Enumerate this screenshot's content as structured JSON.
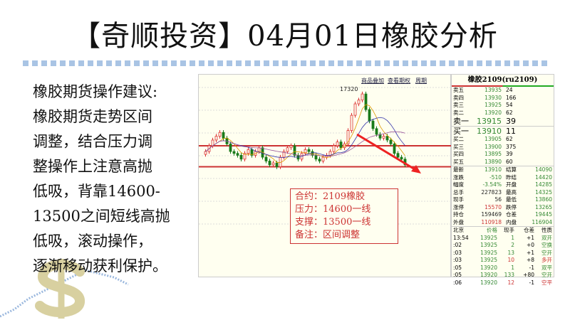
{
  "title": "【奇顺投资】04月01日橡胶分析",
  "advice": [
    "橡胶期货操作建议:",
    "橡胶期货走势区间",
    "调整，结合压力调",
    "整操作上注意高抛",
    "低吸，背靠14600-",
    "13500之间短线高抛",
    "低吸，滚动操作，",
    "逐渐移动获利保护。"
  ],
  "chart": {
    "toolbar": [
      "商品叠加",
      "查看期权",
      "周期"
    ],
    "high_label": "17320",
    "resistance": 14600,
    "support": 13500,
    "note": [
      "合约：2109橡胶",
      "压力：14600一线",
      "支撑：13500一线",
      "备注：区间调整"
    ],
    "colors": {
      "up": "#d33",
      "down": "#1a7a1a",
      "line": "#c33"
    }
  },
  "chart_data": {
    "type": "candlestick",
    "closes": [
      14300,
      14600,
      14900,
      15100,
      15300,
      15000,
      14700,
      14300,
      14200,
      14100,
      13900,
      14200,
      14400,
      14100,
      14300,
      14500,
      14000,
      13800,
      13600,
      13700,
      13500,
      14000,
      14300,
      14500,
      14600,
      14100,
      13900,
      14200,
      14400,
      14300,
      14100,
      13900,
      13800,
      14000,
      14100,
      14300,
      14600,
      14800,
      14500,
      14700,
      15400,
      16200,
      16800,
      17000,
      17320,
      16500,
      15900,
      15500,
      15200,
      15000,
      15100,
      14900,
      14700,
      14200,
      14000,
      13900,
      13600
    ],
    "hlines": [
      14600,
      13500
    ]
  },
  "quote": {
    "title": "橡胶2109(ru2109)",
    "sells": [
      [
        "卖五",
        "13935",
        "24"
      ],
      [
        "卖四",
        "13930",
        "166"
      ],
      [
        "卖三",
        "13925",
        "54"
      ],
      [
        "卖二",
        "13920",
        "62"
      ],
      [
        "卖一",
        "13915",
        "39"
      ]
    ],
    "buys": [
      [
        "买一",
        "13910",
        "11"
      ],
      [
        "买二",
        "13905",
        "62"
      ],
      [
        "买三",
        "13900",
        "375"
      ],
      [
        "买四",
        "13895",
        "39"
      ],
      [
        "买五",
        "13890",
        "60"
      ]
    ],
    "stats": [
      [
        "最新",
        "13910",
        "结算",
        "14090"
      ],
      [
        "涨跌",
        "-510",
        "昨结",
        "14420"
      ],
      [
        "幅度",
        "-3.54%",
        "开盘",
        "14285"
      ],
      [
        "总手",
        "227823",
        "最高",
        "14325"
      ],
      [
        "现手",
        "56",
        "最低",
        "13860"
      ],
      [
        "涨停",
        "15570",
        "跌停",
        "13265"
      ],
      [
        "持仓",
        "159469",
        "仓差",
        "19445"
      ],
      [
        "外盘",
        "110918",
        "内盘",
        "116904"
      ]
    ],
    "tick_header": [
      "北京",
      "价格",
      "现手",
      "仓差",
      "性质"
    ],
    "ticks": [
      [
        "13:54",
        "13925",
        "1",
        "+1",
        "双开"
      ],
      [
        ":02",
        "13925",
        "2",
        "+0",
        "空换"
      ],
      [
        ":03",
        "13925",
        "13",
        "+1",
        "空开"
      ],
      [
        ":03",
        "13925",
        "10",
        "+8",
        "多开"
      ],
      [
        ":05",
        "13920",
        "1",
        "-1",
        "双平"
      ],
      [
        ":05",
        "13920",
        "133",
        "+80",
        "空开"
      ],
      [
        ":06",
        "13920",
        "12",
        "-1",
        "空平"
      ]
    ]
  }
}
